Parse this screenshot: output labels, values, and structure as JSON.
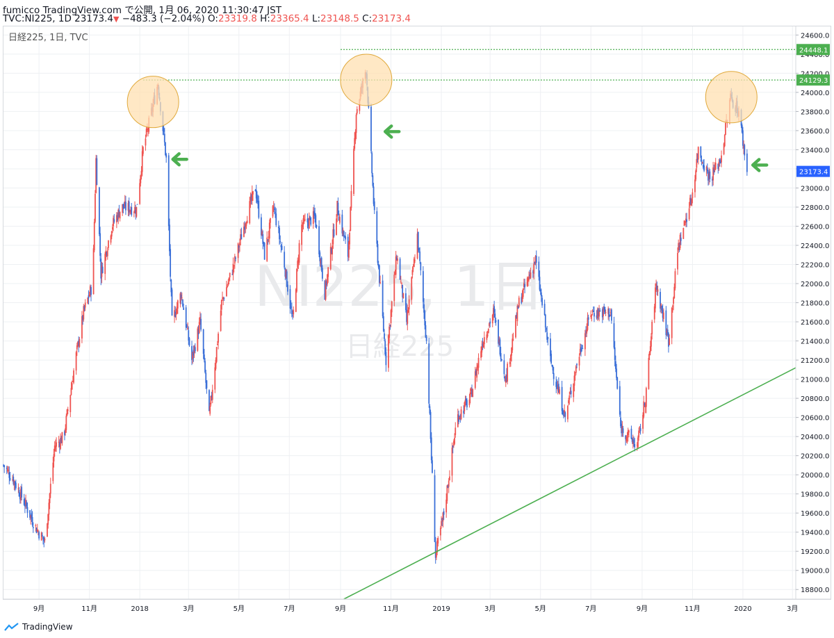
{
  "header": {
    "line1": "fumicco TradingView.com で公開, 1月 06, 2020 11:30:47 JST",
    "symbol": "TVC:NI225, 1D",
    "last": "23173.4",
    "change": "−483.3 (−2.04%)",
    "o_label": "O:",
    "o_value": "23319.8",
    "h_label": "H:",
    "h_value": "23365.4",
    "l_label": "L:",
    "l_value": "23148.5",
    "c_label": "C:",
    "c_value": "23173.4"
  },
  "chart_data": {
    "type": "candlestick",
    "legend": "日経225, 1日, TVC",
    "watermark_symbol": "NI225, 1日",
    "watermark_name": "日経225",
    "y_axis": {
      "ticks": [
        18800,
        19000,
        19200,
        19400,
        19600,
        19800,
        20000,
        20200,
        20400,
        20600,
        20800,
        21000,
        21200,
        21400,
        21600,
        21800,
        22000,
        22200,
        22400,
        22600,
        22800,
        23000,
        23200,
        23400,
        23600,
        23800,
        24000,
        24200,
        24400,
        24600
      ],
      "range": [
        18700,
        24690
      ]
    },
    "x_axis": {
      "ticks": [
        {
          "label": "9月",
          "date": "2017-09-01"
        },
        {
          "label": "11月",
          "date": "2017-11-01"
        },
        {
          "label": "2018",
          "date": "2018-01-01"
        },
        {
          "label": "3月",
          "date": "2018-03-01"
        },
        {
          "label": "5月",
          "date": "2018-05-01"
        },
        {
          "label": "7月",
          "date": "2018-07-01"
        },
        {
          "label": "9月",
          "date": "2018-09-01"
        },
        {
          "label": "11月",
          "date": "2018-11-01"
        },
        {
          "label": "2019",
          "date": "2019-01-01"
        },
        {
          "label": "3月",
          "date": "2019-03-01"
        },
        {
          "label": "5月",
          "date": "2019-05-01"
        },
        {
          "label": "7月",
          "date": "2019-07-01"
        },
        {
          "label": "9月",
          "date": "2019-09-01"
        },
        {
          "label": "11月",
          "date": "2019-11-01"
        },
        {
          "label": "2020",
          "date": "2020-01-01"
        },
        {
          "label": "3月",
          "date": "2020-03-01"
        }
      ],
      "range": [
        "2017-07-20",
        "2020-03-05"
      ]
    },
    "price_labels": [
      {
        "value": "24448.1",
        "price": 24448.1,
        "color": "#4caf50"
      },
      {
        "value": "24129.3",
        "price": 24129.3,
        "color": "#4caf50"
      },
      {
        "value": "23173.4",
        "price": 23173.4,
        "color": "#2962ff"
      }
    ],
    "horizontal_lines": [
      {
        "price": 24448.1,
        "from": "2018-09-01",
        "color": "#4caf50",
        "style": "dotted"
      },
      {
        "price": 24129.3,
        "from": "2018-01-05",
        "color": "#4caf50",
        "style": "dotted"
      }
    ],
    "trendline": {
      "start": {
        "date": "2018-09-05",
        "price": 18700
      },
      "end": {
        "date": "2020-03-05",
        "price": 21120
      },
      "color": "#4caf50"
    },
    "circles": [
      {
        "date": "2018-01-17",
        "price": 23900,
        "color": "#ffe0b2"
      },
      {
        "date": "2018-10-02",
        "price": 24130,
        "color": "#ffe0b2"
      },
      {
        "date": "2019-12-18",
        "price": 23950,
        "color": "#ffe0b2"
      }
    ],
    "arrows": [
      {
        "date": "2018-02-10",
        "price": 23300,
        "color": "#4caf50"
      },
      {
        "date": "2018-10-25",
        "price": 23590,
        "color": "#4caf50"
      },
      {
        "date": "2020-01-13",
        "price": 23240,
        "color": "#4caf50"
      }
    ],
    "series": [
      {
        "date": "2017-07-20",
        "close": 20100
      },
      {
        "date": "2017-08-01",
        "close": 19950
      },
      {
        "date": "2017-08-15",
        "close": 19700
      },
      {
        "date": "2017-08-28",
        "close": 19450
      },
      {
        "date": "2017-09-08",
        "close": 19300
      },
      {
        "date": "2017-09-20",
        "close": 20300
      },
      {
        "date": "2017-10-01",
        "close": 20400
      },
      {
        "date": "2017-10-15",
        "close": 21200
      },
      {
        "date": "2017-10-25",
        "close": 21700
      },
      {
        "date": "2017-11-05",
        "close": 22000
      },
      {
        "date": "2017-11-09",
        "close": 23300
      },
      {
        "date": "2017-11-15",
        "close": 22100
      },
      {
        "date": "2017-11-28",
        "close": 22600
      },
      {
        "date": "2017-12-10",
        "close": 22800
      },
      {
        "date": "2017-12-28",
        "close": 22780
      },
      {
        "date": "2018-01-05",
        "close": 23400
      },
      {
        "date": "2018-01-23",
        "close": 24100
      },
      {
        "date": "2018-02-02",
        "close": 23300
      },
      {
        "date": "2018-02-09",
        "close": 21600
      },
      {
        "date": "2018-02-20",
        "close": 21900
      },
      {
        "date": "2018-03-05",
        "close": 21200
      },
      {
        "date": "2018-03-15",
        "close": 21600
      },
      {
        "date": "2018-03-26",
        "close": 20600
      },
      {
        "date": "2018-04-10",
        "close": 21800
      },
      {
        "date": "2018-04-25",
        "close": 22200
      },
      {
        "date": "2018-05-10",
        "close": 22700
      },
      {
        "date": "2018-05-21",
        "close": 23000
      },
      {
        "date": "2018-06-01",
        "close": 22300
      },
      {
        "date": "2018-06-12",
        "close": 22800
      },
      {
        "date": "2018-06-25",
        "close": 22200
      },
      {
        "date": "2018-07-05",
        "close": 21600
      },
      {
        "date": "2018-07-15",
        "close": 22600
      },
      {
        "date": "2018-08-01",
        "close": 22700
      },
      {
        "date": "2018-08-13",
        "close": 21900
      },
      {
        "date": "2018-08-28",
        "close": 22800
      },
      {
        "date": "2018-09-10",
        "close": 22300
      },
      {
        "date": "2018-09-20",
        "close": 23800
      },
      {
        "date": "2018-10-02",
        "close": 24250
      },
      {
        "date": "2018-10-12",
        "close": 22700
      },
      {
        "date": "2018-10-26",
        "close": 21200
      },
      {
        "date": "2018-11-08",
        "close": 22300
      },
      {
        "date": "2018-11-20",
        "close": 21600
      },
      {
        "date": "2018-12-03",
        "close": 22500
      },
      {
        "date": "2018-12-14",
        "close": 21400
      },
      {
        "date": "2018-12-25",
        "close": 19150
      },
      {
        "date": "2019-01-04",
        "close": 19600
      },
      {
        "date": "2019-01-20",
        "close": 20600
      },
      {
        "date": "2019-02-05",
        "close": 20800
      },
      {
        "date": "2019-02-20",
        "close": 21400
      },
      {
        "date": "2019-03-05",
        "close": 21700
      },
      {
        "date": "2019-03-20",
        "close": 21000
      },
      {
        "date": "2019-04-05",
        "close": 21800
      },
      {
        "date": "2019-04-25",
        "close": 22250
      },
      {
        "date": "2019-05-13",
        "close": 21200
      },
      {
        "date": "2019-05-31",
        "close": 20600
      },
      {
        "date": "2019-06-15",
        "close": 21200
      },
      {
        "date": "2019-07-01",
        "close": 21700
      },
      {
        "date": "2019-07-25",
        "close": 21700
      },
      {
        "date": "2019-08-06",
        "close": 20500
      },
      {
        "date": "2019-08-26",
        "close": 20300
      },
      {
        "date": "2019-09-05",
        "close": 20800
      },
      {
        "date": "2019-09-18",
        "close": 22000
      },
      {
        "date": "2019-10-03",
        "close": 21400
      },
      {
        "date": "2019-10-15",
        "close": 22400
      },
      {
        "date": "2019-10-31",
        "close": 22900
      },
      {
        "date": "2019-11-08",
        "close": 23400
      },
      {
        "date": "2019-11-22",
        "close": 23100
      },
      {
        "date": "2019-12-05",
        "close": 23300
      },
      {
        "date": "2019-12-17",
        "close": 23950
      },
      {
        "date": "2019-12-27",
        "close": 23800
      },
      {
        "date": "2020-01-06",
        "close": 23173.4
      }
    ]
  },
  "footer": {
    "brand": "TradingView"
  }
}
